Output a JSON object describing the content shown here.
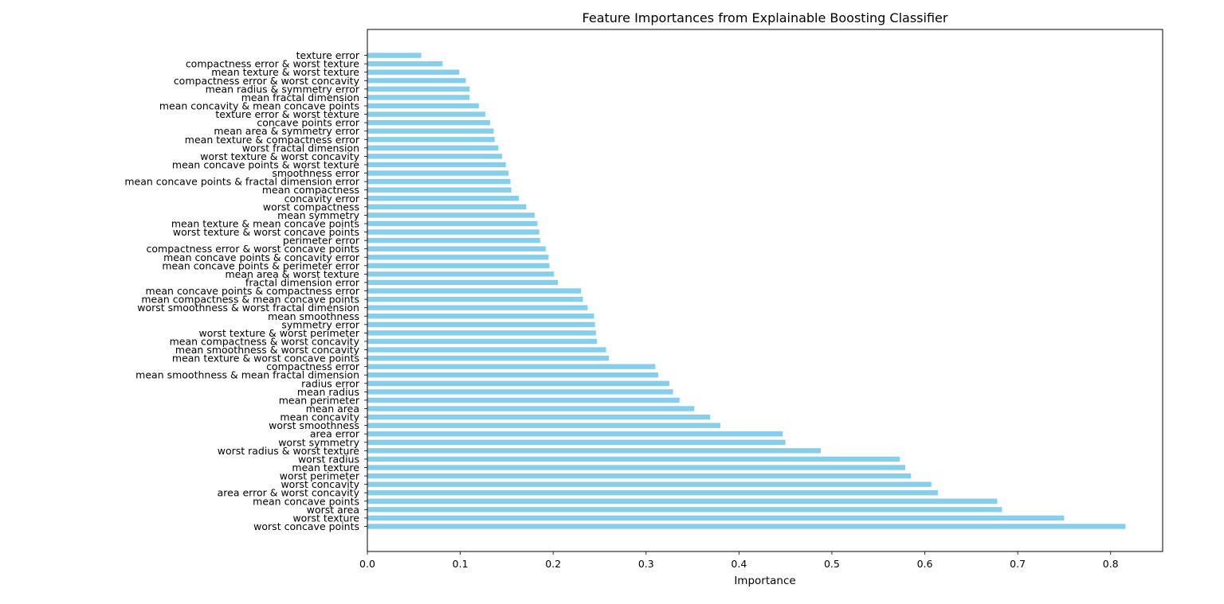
{
  "chart_data": {
    "type": "bar",
    "orientation": "horizontal",
    "title": "Feature Importances from Explainable Boosting Classifier",
    "xlabel": "Importance",
    "ylabel": "",
    "xlim": [
      0,
      0.856
    ],
    "xticks": [
      0.0,
      0.1,
      0.2,
      0.3,
      0.4,
      0.5,
      0.6,
      0.7,
      0.8
    ],
    "xtick_labels": [
      "0.0",
      "0.1",
      "0.2",
      "0.3",
      "0.4",
      "0.5",
      "0.6",
      "0.7",
      "0.8"
    ],
    "grid": false,
    "bar_color": "#87ceeb",
    "categories": [
      "worst concave points",
      "worst texture",
      "worst area",
      "mean concave points",
      "area error & worst concavity",
      "worst concavity",
      "worst perimeter",
      "mean texture",
      "worst radius",
      "worst radius & worst texture",
      "worst symmetry",
      "area error",
      "worst smoothness",
      "mean concavity",
      "mean area",
      "mean perimeter",
      "mean radius",
      "radius error",
      "mean smoothness & mean fractal dimension",
      "compactness error",
      "mean texture & worst concave points",
      "mean smoothness & worst concavity",
      "mean compactness & worst concavity",
      "worst texture & worst perimeter",
      "symmetry error",
      "mean smoothness",
      "worst smoothness & worst fractal dimension",
      "mean compactness & mean concave points",
      "mean concave points & compactness error",
      "fractal dimension error",
      "mean area & worst texture",
      "mean concave points & perimeter error",
      "mean concave points & concavity error",
      "compactness error & worst concave points",
      "perimeter error",
      "worst texture & worst concave points",
      "mean texture & mean concave points",
      "mean symmetry",
      "worst compactness",
      "concavity error",
      "mean compactness",
      "mean concave points & fractal dimension error",
      "smoothness error",
      "mean concave points & worst texture",
      "worst texture & worst concavity",
      "worst fractal dimension",
      "mean texture & compactness error",
      "mean area & symmetry error",
      "concave points error",
      "texture error & worst texture",
      "mean concavity & mean concave points",
      "mean fractal dimension",
      "mean radius & symmetry error",
      "compactness error & worst concavity",
      "mean texture & worst texture",
      "compactness error & worst texture",
      "texture error"
    ],
    "values": [
      0.816,
      0.75,
      0.683,
      0.678,
      0.614,
      0.607,
      0.585,
      0.579,
      0.573,
      0.488,
      0.45,
      0.447,
      0.38,
      0.369,
      0.352,
      0.336,
      0.329,
      0.325,
      0.313,
      0.31,
      0.26,
      0.257,
      0.247,
      0.246,
      0.245,
      0.244,
      0.237,
      0.232,
      0.23,
      0.205,
      0.201,
      0.196,
      0.195,
      0.192,
      0.186,
      0.185,
      0.183,
      0.18,
      0.171,
      0.163,
      0.155,
      0.154,
      0.152,
      0.149,
      0.145,
      0.141,
      0.137,
      0.136,
      0.132,
      0.127,
      0.12,
      0.11,
      0.11,
      0.106,
      0.099,
      0.081,
      0.058
    ]
  }
}
